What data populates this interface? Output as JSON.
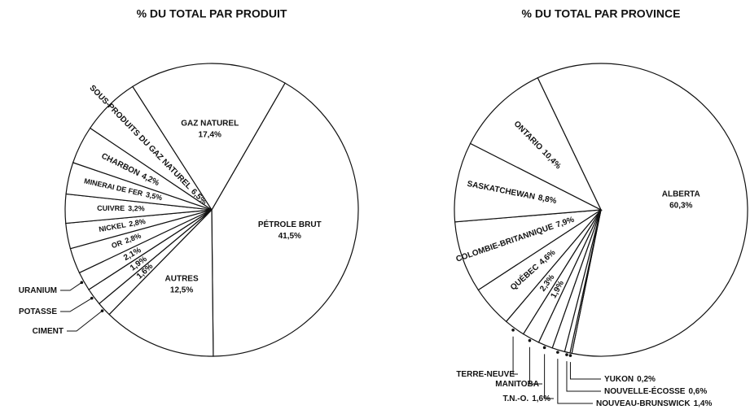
{
  "chart_data": [
    {
      "type": "pie",
      "title": "% DU TOTAL PAR PRODUIT",
      "categories": [
        "PÉTROLE BRUT",
        "AUTRES",
        "CIMENT",
        "POTASSE",
        "URANIUM",
        "OR",
        "NICKEL",
        "CUIVRE",
        "MINERAI DE FER",
        "CHARBON",
        "SOUS-PRODUITS DU GAZ NATUREL",
        "GAZ NATUREL"
      ],
      "values": [
        41.5,
        12.5,
        1.6,
        1.9,
        2.1,
        2.8,
        2.8,
        3.2,
        3.5,
        4.2,
        6.5,
        17.4
      ],
      "value_labels": [
        "41,5%",
        "12,5%",
        "1,6%",
        "1,9%",
        "2,1%",
        "2,8%",
        "2,8%",
        "3,2%",
        "3,5%",
        "4,2%",
        "6,5%",
        "17,4%"
      ],
      "color": "#ffffff"
    },
    {
      "type": "pie",
      "title": "% DU TOTAL PAR PROVINCE",
      "categories": [
        "ALBERTA",
        "YUKON",
        "NOUVELLE-ÉCOSSE",
        "NOUVEAU-BRUNSWICK",
        "T.N.-O.",
        "MANITOBA",
        "TERRE-NEUVE",
        "QUÉBEC",
        "COLOMBIE-BRITANNIQUE",
        "SASKATCHEWAN",
        "ONTARIO"
      ],
      "values": [
        60.3,
        0.2,
        0.6,
        1.4,
        1.6,
        1.9,
        2.3,
        4.6,
        7.9,
        8.8,
        10.4
      ],
      "value_labels": [
        "60,3%",
        "0,2%",
        "0,6%",
        "1,4%",
        "1,6%",
        "1,9%",
        "2,3%",
        "4,6%",
        "7,9%",
        "8,8%",
        "10,4%"
      ],
      "color": "#ffffff"
    }
  ]
}
